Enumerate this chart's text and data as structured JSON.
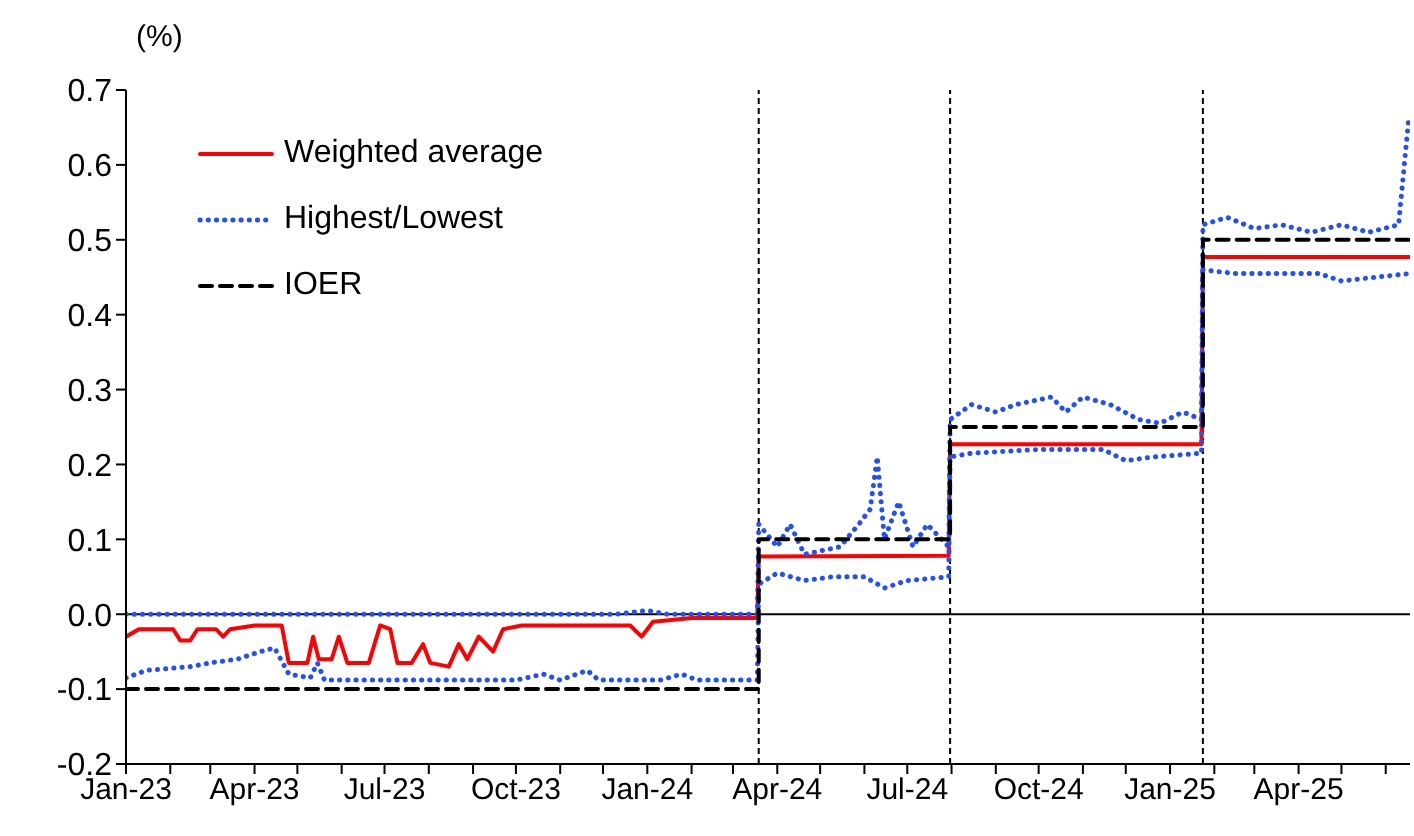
{
  "chart_data": {
    "type": "line",
    "ylabel": "(%)",
    "legend": "top left",
    "xlim": [
      "2023-01-01",
      "2025-06-18"
    ],
    "xticks": [
      {
        "value": "2023-01",
        "label": "Jan-23"
      },
      {
        "value": "2023-02",
        "label": null
      },
      {
        "value": "2023-03",
        "label": null
      },
      {
        "value": "2023-04",
        "label": "Apr-23"
      },
      {
        "value": "2023-05",
        "label": null
      },
      {
        "value": "2023-06",
        "label": null
      },
      {
        "value": "2023-07",
        "label": "Jul-23"
      },
      {
        "value": "2023-08",
        "label": null
      },
      {
        "value": "2023-09",
        "label": null
      },
      {
        "value": "2023-10",
        "label": "Oct-23"
      },
      {
        "value": "2023-11",
        "label": null
      },
      {
        "value": "2023-12",
        "label": null
      },
      {
        "value": "2024-01",
        "label": "Jan-24"
      },
      {
        "value": "2024-02",
        "label": null
      },
      {
        "value": "2024-03",
        "label": null
      },
      {
        "value": "2024-04",
        "label": "Apr-24"
      },
      {
        "value": "2024-05",
        "label": null
      },
      {
        "value": "2024-06",
        "label": null
      },
      {
        "value": "2024-07",
        "label": "Jul-24"
      },
      {
        "value": "2024-08",
        "label": null
      },
      {
        "value": "2024-09",
        "label": null
      },
      {
        "value": "2024-10",
        "label": "Oct-24"
      },
      {
        "value": "2024-11",
        "label": null
      },
      {
        "value": "2024-12",
        "label": null
      },
      {
        "value": "2025-01",
        "label": "Jan-25"
      },
      {
        "value": "2025-02",
        "label": null
      },
      {
        "value": "2025-03",
        "label": null
      },
      {
        "value": "2025-04",
        "label": "Apr-25"
      },
      {
        "value": "2025-05",
        "label": null
      },
      {
        "value": "2025-06",
        "label": null
      }
    ],
    "ylim": [
      -0.2,
      0.7
    ],
    "yticks": [
      -0.2,
      -0.1,
      {
        "value": 0,
        "label": "0.0"
      },
      0.1,
      0.2,
      0.3,
      0.4,
      0.5,
      0.6,
      0.7
    ],
    "ref_lines": [
      {
        "axis": "y",
        "value": 0,
        "color": "#000000",
        "line_style": "solid"
      },
      {
        "axis": "x",
        "value": "2024-03-19",
        "color": "#000000",
        "line_style": "dashed"
      },
      {
        "axis": "x",
        "value": "2024-07-31",
        "color": "#000000",
        "line_style": "dashed"
      },
      {
        "axis": "x",
        "value": "2025-01-24",
        "color": "#000000",
        "line_style": "dashed"
      }
    ],
    "series": [
      {
        "name": "Weighted average",
        "color": "#ff0000",
        "line_style": "solid",
        "x": [
          "2023-01-01",
          "2023-01-10",
          "2023-01-25",
          "2023-02-03",
          "2023-02-08",
          "2023-02-15",
          "2023-02-20",
          "2023-03-05",
          "2023-03-10",
          "2023-03-15",
          "2023-04-01",
          "2023-04-20",
          "2023-04-25",
          "2023-05-08",
          "2023-05-12",
          "2023-05-16",
          "2023-05-25",
          "2023-05-30",
          "2023-06-05",
          "2023-06-20",
          "2023-06-28",
          "2023-07-05",
          "2023-07-10",
          "2023-07-20",
          "2023-07-28",
          "2023-08-02",
          "2023-08-15",
          "2023-08-22",
          "2023-08-28",
          "2023-09-05",
          "2023-09-15",
          "2023-09-22",
          "2023-10-05",
          "2023-11-15",
          "2023-12-20",
          "2023-12-28",
          "2024-01-05",
          "2024-02-01",
          "2024-03-18",
          "2024-03-19",
          "2024-07-30",
          "2024-07-31",
          "2025-01-23",
          "2025-01-24",
          "2025-06-18"
        ],
        "values": [
          -0.03,
          -0.02,
          -0.02,
          -0.02,
          -0.035,
          -0.035,
          -0.02,
          -0.02,
          -0.03,
          -0.02,
          -0.015,
          -0.015,
          -0.065,
          -0.065,
          -0.03,
          -0.06,
          -0.06,
          -0.03,
          -0.065,
          -0.065,
          -0.015,
          -0.02,
          -0.065,
          -0.065,
          -0.04,
          -0.065,
          -0.07,
          -0.04,
          -0.06,
          -0.03,
          -0.05,
          -0.02,
          -0.015,
          -0.015,
          -0.015,
          -0.03,
          -0.01,
          -0.005,
          -0.005,
          0.077,
          0.078,
          0.227,
          0.227,
          0.477,
          0.477
        ]
      },
      {
        "name": "Highest/Lowest",
        "color": "#1f4fff",
        "line_style": "dotted",
        "x": [
          "2023-01-01",
          "2023-12-10",
          "2024-01-01",
          "2024-01-15",
          "2024-03-18",
          "2024-03-19",
          "2024-04-01",
          "2024-04-10",
          "2024-04-20",
          "2024-05-15",
          "2024-05-28",
          "2024-06-05",
          "2024-06-10",
          "2024-06-15",
          "2024-06-25",
          "2024-07-05",
          "2024-07-15",
          "2024-07-30",
          "2024-07-31",
          "2024-08-15",
          "2024-09-01",
          "2024-09-15",
          "2024-10-10",
          "2024-10-20",
          "2024-11-01",
          "2024-11-20",
          "2024-12-10",
          "2024-12-25",
          "2025-01-10",
          "2025-01-23",
          "2025-01-24",
          "2025-02-10",
          "2025-03-01",
          "2025-03-20",
          "2025-04-10",
          "2025-05-01",
          "2025-05-20",
          "2025-06-10",
          "2025-06-17"
        ],
        "values": [
          0,
          0,
          0.005,
          0,
          0,
          0.12,
          0.09,
          0.12,
          0.08,
          0.09,
          0.12,
          0.14,
          0.21,
          0.1,
          0.15,
          0.09,
          0.12,
          0.09,
          0.26,
          0.28,
          0.27,
          0.28,
          0.29,
          0.27,
          0.29,
          0.28,
          0.26,
          0.255,
          0.27,
          0.26,
          0.52,
          0.53,
          0.515,
          0.52,
          0.51,
          0.52,
          0.51,
          0.52,
          0.66
        ]
      },
      {
        "color": "#1f4fff",
        "line_style": "dotted",
        "x": [
          "2023-01-01",
          "2023-01-15",
          "2023-02-15",
          "2023-03-01",
          "2023-03-20",
          "2023-04-05",
          "2023-04-15",
          "2023-04-25",
          "2023-05-10",
          "2023-05-15",
          "2023-05-20",
          "2023-10-01",
          "2023-10-20",
          "2023-11-01",
          "2023-11-20",
          "2023-11-28",
          "2024-01-10",
          "2024-01-25",
          "2024-02-05",
          "2024-03-18",
          "2024-03-19",
          "2024-04-01",
          "2024-04-20",
          "2024-05-10",
          "2024-06-01",
          "2024-06-15",
          "2024-07-01",
          "2024-07-30",
          "2024-07-31",
          "2024-08-15",
          "2024-10-01",
          "2024-11-15",
          "2024-12-01",
          "2024-12-20",
          "2025-01-23",
          "2025-01-24",
          "2025-02-15",
          "2025-04-15",
          "2025-05-01",
          "2025-06-18"
        ],
        "values": [
          -0.085,
          -0.075,
          -0.07,
          -0.065,
          -0.06,
          -0.05,
          -0.045,
          -0.08,
          -0.085,
          -0.065,
          -0.088,
          -0.088,
          -0.08,
          -0.088,
          -0.075,
          -0.088,
          -0.088,
          -0.08,
          -0.088,
          -0.088,
          0.04,
          0.055,
          0.045,
          0.05,
          0.05,
          0.035,
          0.045,
          0.05,
          0.21,
          0.215,
          0.22,
          0.22,
          0.205,
          0.21,
          0.215,
          0.46,
          0.455,
          0.455,
          0.445,
          0.455
        ]
      },
      {
        "name": "IOER",
        "type": "step",
        "color": "#000000",
        "line_style": "dashed",
        "x": [
          "2023-01-01",
          "2024-03-19",
          "2024-07-31",
          "2025-01-24",
          "2025-06-18"
        ],
        "values": [
          -0.1,
          0.1,
          0.25,
          0.5,
          0.5
        ]
      }
    ]
  }
}
